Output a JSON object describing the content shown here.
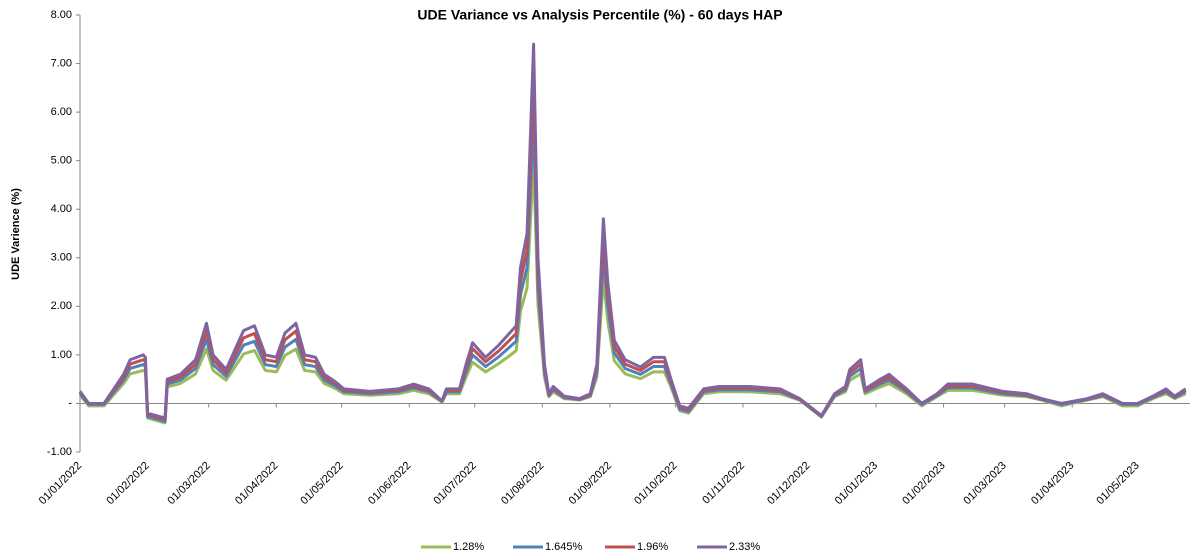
{
  "chart_data": {
    "type": "line",
    "title": "UDE Variance vs Analysis Percentile (%) - 60 days HAP",
    "y_label": "UDE Varience (%)",
    "x": [
      "01/01/2022",
      "05/01/2022",
      "12/01/2022",
      "21/01/2022",
      "24/01/2022",
      "30/01/2022",
      "31/01/2022",
      "01/02/2022",
      "09/02/2022",
      "10/02/2022",
      "16/02/2022",
      "23/02/2022",
      "28/02/2022",
      "03/03/2022",
      "09/03/2022",
      "12/03/2022",
      "17/03/2022",
      "22/03/2022",
      "27/03/2022",
      "01/04/2022",
      "05/04/2022",
      "10/04/2022",
      "14/04/2022",
      "19/04/2022",
      "23/04/2022",
      "28/04/2022",
      "02/05/2022",
      "14/05/2022",
      "27/05/2022",
      "03/06/2022",
      "10/06/2022",
      "16/06/2022",
      "18/06/2022",
      "24/06/2022",
      "27/06/2022",
      "30/06/2022",
      "06/07/2022",
      "12/07/2022",
      "16/07/2022",
      "20/07/2022",
      "22/07/2022",
      "25/07/2022",
      "28/07/2022",
      "30/07/2022",
      "02/08/2022",
      "04/08/2022",
      "06/08/2022",
      "11/08/2022",
      "18/08/2022",
      "23/08/2022",
      "26/08/2022",
      "29/08/2022",
      "31/08/2022",
      "03/09/2022",
      "08/09/2022",
      "15/09/2022",
      "21/09/2022",
      "26/09/2022",
      "29/09/2022",
      "03/10/2022",
      "07/10/2022",
      "14/10/2022",
      "21/10/2022",
      "04/11/2022",
      "18/11/2022",
      "27/11/2022",
      "07/12/2022",
      "13/12/2022",
      "18/12/2022",
      "20/12/2022",
      "25/12/2022",
      "27/12/2022",
      "03/01/2023",
      "07/01/2023",
      "15/01/2023",
      "22/01/2023",
      "29/01/2023",
      "03/02/2023",
      "14/02/2023",
      "28/02/2023",
      "11/03/2023",
      "18/03/2023",
      "27/03/2023",
      "08/04/2023",
      "15/04/2023",
      "24/04/2023",
      "01/05/2023",
      "08/05/2023",
      "14/05/2023",
      "18/05/2023",
      "23/05/2023"
    ],
    "xlim": [
      "01/01/2022",
      "25/05/2023"
    ],
    "xticks": [
      "01/01/2022",
      "01/02/2022",
      "01/03/2022",
      "01/04/2022",
      "01/05/2022",
      "01/06/2022",
      "01/07/2022",
      "01/08/2022",
      "01/09/2022",
      "01/10/2022",
      "01/11/2022",
      "01/12/2022",
      "01/01/2023",
      "01/02/2023",
      "01/03/2023",
      "01/04/2023",
      "01/05/2023"
    ],
    "ylim": [
      -1,
      8
    ],
    "yticks": [
      {
        "value": -1,
        "label": "-1.00"
      },
      {
        "value": 0,
        "label": "-"
      },
      {
        "value": 1,
        "label": "1.00"
      },
      {
        "value": 2,
        "label": "2.00"
      },
      {
        "value": 3,
        "label": "3.00"
      },
      {
        "value": 4,
        "label": "4.00"
      },
      {
        "value": 5,
        "label": "5.00"
      },
      {
        "value": 6,
        "label": "6.00"
      },
      {
        "value": 7,
        "label": "7.00"
      },
      {
        "value": 8,
        "label": "8.00"
      }
    ],
    "grid": false,
    "legend": "bottom",
    "series": [
      {
        "name": "1.28%",
        "color": "#9bbb59",
        "values": [
          0.17,
          -0.05,
          -0.05,
          0.41,
          0.61,
          0.68,
          0.65,
          -0.3,
          -0.4,
          0.34,
          0.41,
          0.61,
          1.12,
          0.68,
          0.48,
          0.68,
          1.02,
          1.09,
          0.68,
          0.65,
          0.99,
          1.12,
          0.68,
          0.65,
          0.41,
          0.31,
          0.2,
          0.17,
          0.2,
          0.27,
          0.2,
          0.03,
          0.2,
          0.2,
          0.54,
          0.85,
          0.65,
          0.82,
          0.95,
          1.09,
          1.9,
          2.38,
          5.03,
          2.04,
          0.54,
          0.14,
          0.24,
          0.1,
          0.07,
          0.14,
          0.54,
          2.58,
          1.7,
          0.88,
          0.61,
          0.51,
          0.65,
          0.65,
          0.34,
          -0.15,
          -0.2,
          0.2,
          0.24,
          0.24,
          0.2,
          0.07,
          -0.28,
          0.14,
          0.24,
          0.48,
          0.61,
          0.2,
          0.34,
          0.41,
          0.2,
          -0.05,
          0.14,
          0.27,
          0.27,
          0.17,
          0.14,
          0.07,
          -0.05,
          0.07,
          0.14,
          -0.05,
          -0.05,
          0.1,
          0.2,
          0.1,
          0.2
        ]
      },
      {
        "name": "1.645%",
        "color": "#4f81bd",
        "values": [
          0.2,
          -0.02,
          -0.02,
          0.48,
          0.72,
          0.8,
          0.76,
          -0.27,
          -0.37,
          0.4,
          0.48,
          0.72,
          1.32,
          0.8,
          0.56,
          0.8,
          1.2,
          1.28,
          0.8,
          0.76,
          1.16,
          1.32,
          0.8,
          0.76,
          0.48,
          0.36,
          0.24,
          0.2,
          0.24,
          0.32,
          0.24,
          0.04,
          0.24,
          0.24,
          0.64,
          1.0,
          0.76,
          0.96,
          1.12,
          1.28,
          2.24,
          2.8,
          5.92,
          2.4,
          0.64,
          0.16,
          0.28,
          0.12,
          0.08,
          0.16,
          0.64,
          3.04,
          2.0,
          1.04,
          0.72,
          0.6,
          0.76,
          0.76,
          0.4,
          -0.12,
          -0.17,
          0.24,
          0.28,
          0.28,
          0.24,
          0.08,
          -0.27,
          0.16,
          0.28,
          0.56,
          0.72,
          0.24,
          0.4,
          0.48,
          0.24,
          -0.02,
          0.16,
          0.32,
          0.32,
          0.2,
          0.16,
          0.08,
          -0.02,
          0.08,
          0.16,
          -0.02,
          -0.02,
          0.12,
          0.24,
          0.12,
          0.24
        ]
      },
      {
        "name": "1.96%",
        "color": "#c0504d",
        "values": [
          0.23,
          0,
          0,
          0.54,
          0.81,
          0.9,
          0.86,
          -0.23,
          -0.33,
          0.45,
          0.54,
          0.81,
          1.49,
          0.9,
          0.63,
          0.9,
          1.35,
          1.44,
          0.9,
          0.86,
          1.31,
          1.49,
          0.9,
          0.86,
          0.54,
          0.41,
          0.27,
          0.23,
          0.27,
          0.36,
          0.27,
          0.05,
          0.27,
          0.27,
          0.72,
          1.13,
          0.86,
          1.08,
          1.26,
          1.44,
          2.52,
          3.15,
          6.66,
          2.7,
          0.72,
          0.18,
          0.32,
          0.14,
          0.09,
          0.18,
          0.72,
          3.42,
          2.25,
          1.17,
          0.81,
          0.68,
          0.86,
          0.86,
          0.45,
          -0.08,
          -0.13,
          0.27,
          0.32,
          0.32,
          0.27,
          0.09,
          -0.26,
          0.18,
          0.32,
          0.63,
          0.81,
          0.27,
          0.45,
          0.54,
          0.27,
          0,
          0.18,
          0.36,
          0.36,
          0.23,
          0.18,
          0.09,
          0,
          0.09,
          0.18,
          0,
          0,
          0.14,
          0.27,
          0.14,
          0.27
        ]
      },
      {
        "name": "2.33%",
        "color": "#8064a2",
        "values": [
          0.25,
          0,
          0,
          0.6,
          0.9,
          1.0,
          0.95,
          -0.2,
          -0.3,
          0.5,
          0.6,
          0.9,
          1.65,
          1.0,
          0.7,
          1.0,
          1.5,
          1.6,
          1.0,
          0.95,
          1.45,
          1.65,
          1.0,
          0.95,
          0.6,
          0.45,
          0.3,
          0.25,
          0.3,
          0.4,
          0.3,
          0.05,
          0.3,
          0.3,
          0.8,
          1.25,
          0.95,
          1.2,
          1.4,
          1.6,
          2.8,
          3.5,
          7.4,
          3.0,
          0.8,
          0.2,
          0.35,
          0.15,
          0.1,
          0.2,
          0.8,
          3.8,
          2.5,
          1.3,
          0.9,
          0.75,
          0.95,
          0.95,
          0.5,
          -0.05,
          -0.1,
          0.3,
          0.35,
          0.35,
          0.3,
          0.1,
          -0.25,
          0.2,
          0.35,
          0.7,
          0.9,
          0.3,
          0.5,
          0.6,
          0.3,
          0,
          0.2,
          0.4,
          0.4,
          0.25,
          0.2,
          0.1,
          0,
          0.1,
          0.2,
          0,
          0,
          0.15,
          0.3,
          0.15,
          0.3
        ]
      }
    ]
  }
}
